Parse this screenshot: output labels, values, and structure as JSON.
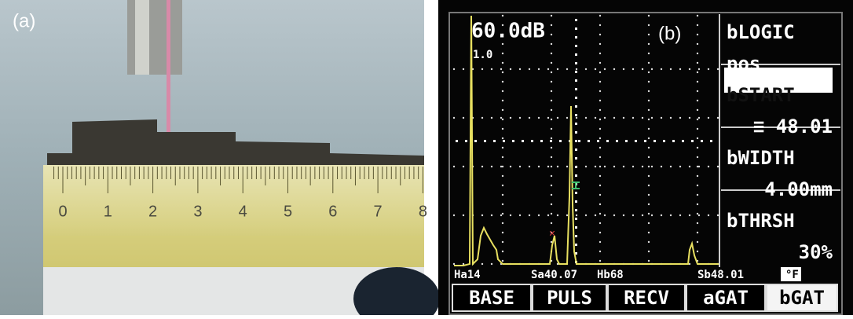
{
  "panel_a": {
    "label": "(a)",
    "ruler_labels": [
      "0",
      "1",
      "2",
      "3",
      "4",
      "5",
      "6",
      "7",
      "8"
    ]
  },
  "panel_b": {
    "label": "(b)",
    "gain": "60.0dB",
    "range_factor": "1.0",
    "side_menu": [
      "bLOGIC",
      "pos",
      "bSTART",
      "≡ 48.01",
      "bWIDTH",
      "4.00mm",
      "bTHRSH",
      "30%"
    ],
    "status_bar": [
      "Ha14",
      "Sa40.07",
      "Hb68",
      "Sb48.01",
      "°F"
    ],
    "bottom_menu": [
      "BASE",
      "PULS",
      "RECV",
      "aGAT",
      "bGAT"
    ]
  }
}
